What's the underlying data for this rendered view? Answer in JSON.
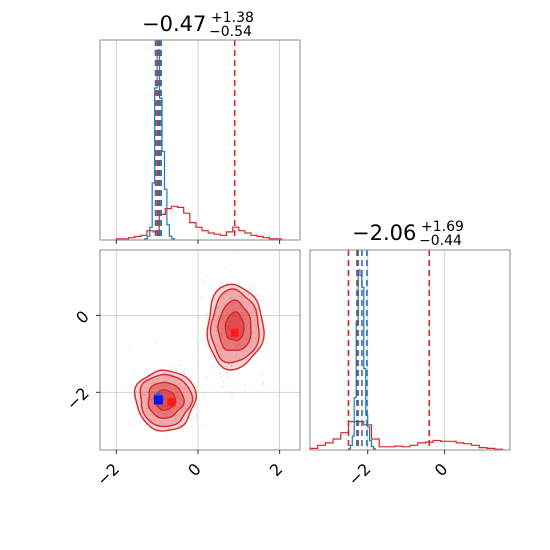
{
  "chart_data": {
    "type": "corner",
    "parameters": [
      {
        "title": {
          "value": "−0.47",
          "plus": "+1.38",
          "minus": "−0.54"
        },
        "range": [
          -2.4,
          2.5
        ],
        "ticks": [
          -2,
          0,
          2
        ],
        "tick_labels": [
          "−2",
          "0",
          "2"
        ]
      },
      {
        "title": {
          "value": "−2.06",
          "plus": "+1.69",
          "minus": "−0.44"
        },
        "range": [
          -3.5,
          1.7
        ],
        "ticks": [
          -2,
          0
        ],
        "tick_labels": [
          "−2",
          "0"
        ]
      }
    ],
    "scatter_y_ticks": [
      0,
      -2
    ],
    "scatter_y_tick_labels": [
      "0",
      "−2"
    ],
    "scatter_y_range": [
      -3.5,
      1.7
    ],
    "series": [
      {
        "color": "#d62728",
        "quantile_lines": [
          [
            -1.0,
            0.9,
            -0.94
          ],
          [
            -2.5,
            -0.4,
            -2.25
          ]
        ],
        "marginal_1": {
          "bin_edges": [
            -2.0,
            -1.85,
            -1.7,
            -1.55,
            -1.4,
            -1.25,
            -1.1,
            -0.95,
            -0.8,
            -0.65,
            -0.5,
            -0.35,
            -0.2,
            -0.05,
            0.1,
            0.25,
            0.4,
            0.55,
            0.7,
            0.85,
            1.0,
            1.15,
            1.3,
            1.45,
            1.6,
            1.75,
            1.9,
            2.05
          ],
          "counts": [
            1,
            1,
            2,
            3,
            4,
            8,
            7,
            22,
            27,
            29,
            28,
            23,
            15,
            11,
            8,
            6,
            5,
            4,
            7,
            11,
            8,
            6,
            4,
            3,
            2,
            1,
            1
          ]
        },
        "marginal_2": {
          "bin_edges": [
            -3.5,
            -3.3,
            -3.1,
            -2.9,
            -2.7,
            -2.5,
            -2.3,
            -2.1,
            -1.9,
            -1.7,
            -1.5,
            -1.3,
            -1.1,
            -0.9,
            -0.7,
            -0.5,
            -0.3,
            -0.1,
            0.1,
            0.3,
            0.5,
            0.7,
            0.9,
            1.1,
            1.3,
            1.5
          ],
          "counts": [
            2,
            6,
            9,
            14,
            22,
            36,
            36,
            32,
            14,
            4,
            4,
            5,
            4,
            6,
            9,
            10,
            12,
            11,
            11,
            9,
            8,
            6,
            3,
            2,
            1
          ]
        },
        "clusters": [
          {
            "center": [
              -0.8,
              -2.2
            ],
            "spread": [
              0.7,
              0.75
            ]
          },
          {
            "center": [
              0.9,
              -0.3
            ],
            "spread": [
              0.65,
              1.05
            ]
          }
        ],
        "medians_2d": [
          [
            0.9,
            -0.45
          ],
          [
            -0.65,
            -2.25
          ]
        ]
      },
      {
        "color": "#1f77b4",
        "quantile_lines": [
          [
            -1.04,
            -0.9,
            -0.96
          ],
          [
            -2.28,
            -2.02,
            -2.15
          ]
        ],
        "marginal_1": {
          "bin_edges": [
            -1.3,
            -1.24,
            -1.18,
            -1.12,
            -1.06,
            -1.0,
            -0.94,
            -0.88,
            -0.82,
            -0.76,
            -0.7,
            -0.64,
            -0.58
          ],
          "counts": [
            1,
            3,
            10,
            45,
            120,
            150,
            112,
            70,
            40,
            12,
            3,
            1
          ]
        },
        "marginal_2": {
          "bin_edges": [
            -2.5,
            -2.45,
            -2.4,
            -2.35,
            -2.3,
            -2.25,
            -2.2,
            -2.15,
            -2.1,
            -2.05,
            -2.0,
            -1.95,
            -1.9,
            -1.85,
            -1.8
          ],
          "counts": [
            1,
            4,
            12,
            45,
            110,
            155,
            150,
            140,
            70,
            30,
            20,
            8,
            3,
            1
          ]
        },
        "clusters": [
          {
            "center": [
              -0.97,
              -2.15
            ],
            "spread": [
              0.1,
              0.12
            ]
          }
        ],
        "medians_2d": [
          [
            -0.97,
            -2.2
          ]
        ]
      }
    ],
    "title": "",
    "xlabel": "",
    "ylabel": "",
    "grid": true
  }
}
